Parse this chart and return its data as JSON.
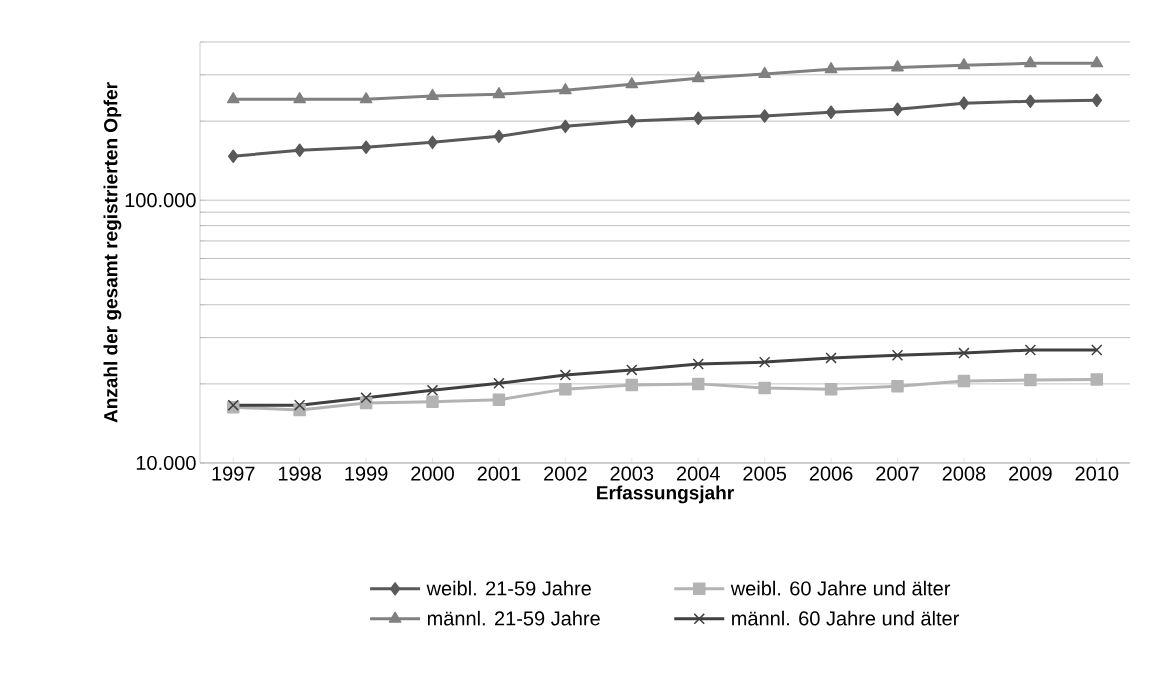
{
  "chart_data": {
    "type": "line",
    "xlabel": "Erfassungsjahr",
    "ylabel": "Anzahl der gesamt registrierten Opfer",
    "categories": [
      "1997",
      "1998",
      "1999",
      "2000",
      "2001",
      "2002",
      "2003",
      "2004",
      "2005",
      "2006",
      "2007",
      "2008",
      "2009",
      "2010"
    ],
    "log": "y",
    "ylim": [
      10000,
      400000
    ],
    "yticks": [
      {
        "value": 10000,
        "label": "10.000"
      },
      {
        "value": 20000,
        "label": null
      },
      {
        "value": 30000,
        "label": null
      },
      {
        "value": 40000,
        "label": null
      },
      {
        "value": 50000,
        "label": null
      },
      {
        "value": 60000,
        "label": null
      },
      {
        "value": 70000,
        "label": null
      },
      {
        "value": 80000,
        "label": null
      },
      {
        "value": 90000,
        "label": null
      },
      {
        "value": 100000,
        "label": "100.000"
      },
      {
        "value": 200000,
        "label": null
      },
      {
        "value": 300000,
        "label": null
      },
      {
        "value": 400000,
        "label": null
      }
    ],
    "grid": "y",
    "legend": "bottom",
    "series": [
      {
        "name": "weibl. 21-59 Jahre",
        "color": "#595959",
        "marker": "diamond",
        "values": [
          147000,
          155000,
          159000,
          166000,
          175000,
          191000,
          200000,
          205000,
          209000,
          216000,
          222000,
          234000,
          238000,
          240000
        ]
      },
      {
        "name": "weibl. 60 Jahre und älter",
        "color": "#b3b3b3",
        "marker": "square",
        "values": [
          16300,
          15900,
          16900,
          17100,
          17400,
          19100,
          19800,
          20000,
          19300,
          19100,
          19600,
          20500,
          20700,
          20800
        ]
      },
      {
        "name": "männl. 21-59 Jahre",
        "color": "#808080",
        "marker": "triangle",
        "values": [
          242000,
          242000,
          242000,
          249000,
          253000,
          262000,
          276000,
          291000,
          302000,
          315000,
          320000,
          326000,
          332000,
          332000
        ]
      },
      {
        "name": "männl. 60 Jahre und älter",
        "color": "#404040",
        "marker": "cross",
        "values": [
          16600,
          16600,
          17700,
          18900,
          20100,
          21600,
          22600,
          23800,
          24200,
          25100,
          25700,
          26200,
          26900,
          26900
        ]
      }
    ]
  }
}
